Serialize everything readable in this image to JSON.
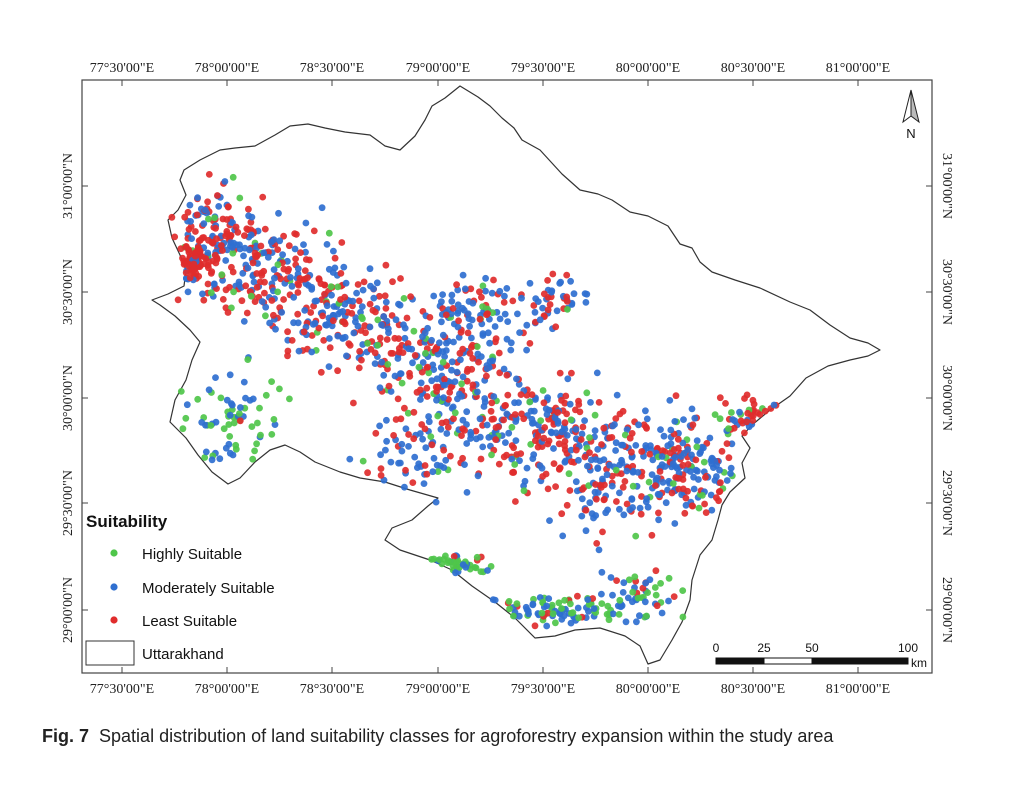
{
  "figure": {
    "label": "Fig. 7",
    "caption": "Spatial distribution of land suitability classes for agroforestry expansion within the study area"
  },
  "axes": {
    "top_ticks": [
      "77°30'00\"E",
      "78°00'00\"E",
      "78°30'00\"E",
      "79°00'00\"E",
      "79°30'00\"E",
      "80°00'00\"E",
      "80°30'00\"E",
      "81°00'00\"E"
    ],
    "bottom_ticks": [
      "77°30'00\"E",
      "78°00'00\"E",
      "78°30'00\"E",
      "79°00'00\"E",
      "79°30'00\"E",
      "80°00'00\"E",
      "80°30'00\"E",
      "81°00'00\"E"
    ],
    "left_ticks": [
      "31°00'00\"N",
      "30°30'00\"N",
      "30°00'00\"N",
      "29°30'00\"N",
      "29°00'00\"N"
    ],
    "right_ticks": [
      "31°00'00\"N",
      "30°30'00\"N",
      "30°00'00\"N",
      "29°30'00\"N",
      "29°00'00\"N"
    ]
  },
  "north_arrow": {
    "label": "N"
  },
  "legend": {
    "title": "Suitability",
    "items": [
      {
        "label": "Highly Suitable",
        "color": "#4fc64a"
      },
      {
        "label": "Moderately Suitable",
        "color": "#2f6fd0"
      },
      {
        "label": "Least Suitable",
        "color": "#e02c2c"
      }
    ],
    "boundary_label": "Uttarakhand"
  },
  "scale_bar": {
    "labels": [
      "0",
      "25",
      "50",
      "100"
    ],
    "unit": "km"
  },
  "colors": {
    "highly": "#4fc64a",
    "moderately": "#2f6fd0",
    "least": "#e02c2c",
    "boundary": "#333333"
  }
}
